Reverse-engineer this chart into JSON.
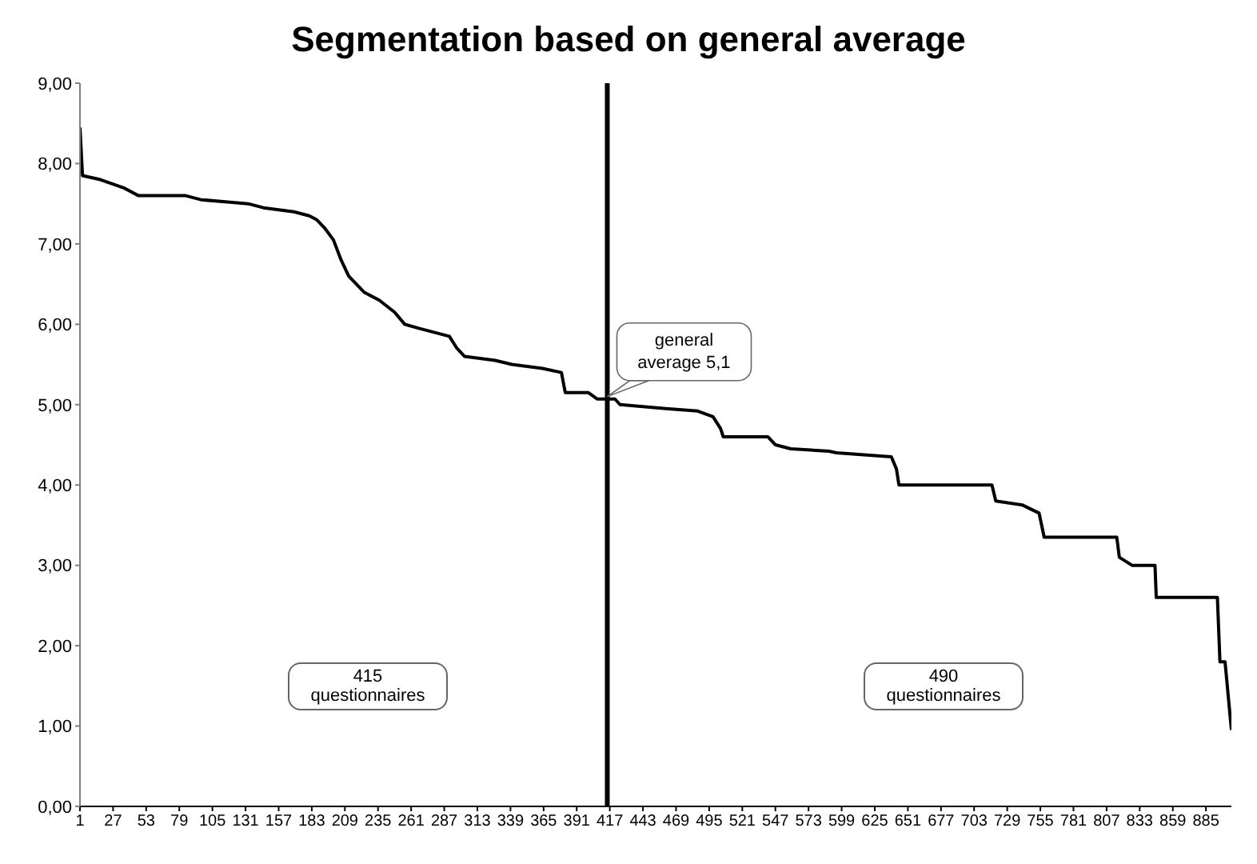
{
  "chart_data": {
    "type": "line",
    "title": "Segmentation based on general average",
    "xlim": [
      1,
      905
    ],
    "xticks": [
      1,
      27,
      53,
      79,
      105,
      131,
      157,
      183,
      209,
      235,
      261,
      287,
      313,
      339,
      365,
      391,
      417,
      443,
      469,
      495,
      521,
      547,
      573,
      599,
      625,
      651,
      677,
      703,
      729,
      755,
      781,
      807,
      833,
      859,
      885
    ],
    "ylim": [
      0,
      9
    ],
    "yticks": [
      {
        "value": 0,
        "label": "0,00"
      },
      {
        "value": 1,
        "label": "1,00"
      },
      {
        "value": 2,
        "label": "2,00"
      },
      {
        "value": 3,
        "label": "3,00"
      },
      {
        "value": 4,
        "label": "4,00"
      },
      {
        "value": 5,
        "label": "5,00"
      },
      {
        "value": 6,
        "label": "6,00"
      },
      {
        "value": 7,
        "label": "7,00"
      },
      {
        "value": 8,
        "label": "8,00"
      },
      {
        "value": 9,
        "label": "9,00"
      }
    ],
    "grid": false,
    "marker": "none",
    "line_style": "solid",
    "series": [
      {
        "color": "#000000",
        "x": [
          1,
          3,
          17,
          35,
          47,
          84,
          96,
          133,
          145,
          169,
          181,
          187,
          193,
          200,
          206,
          212,
          224,
          236,
          248,
          256,
          267,
          291,
          297,
          303,
          327,
          340,
          364,
          379,
          382,
          400,
          407,
          421,
          425,
          461,
          486,
          498,
          504,
          506,
          541,
          547,
          559,
          589,
          595,
          638,
          642,
          644,
          717,
          720,
          741,
          754,
          758,
          815,
          817,
          827,
          845,
          846,
          894,
          896,
          900,
          905
        ],
        "values": [
          8.45,
          7.85,
          7.8,
          7.7,
          7.6,
          7.6,
          7.55,
          7.5,
          7.45,
          7.4,
          7.35,
          7.3,
          7.2,
          7.05,
          6.8,
          6.6,
          6.4,
          6.3,
          6.15,
          6.0,
          5.95,
          5.85,
          5.7,
          5.6,
          5.55,
          5.5,
          5.45,
          5.4,
          5.15,
          5.15,
          5.07,
          5.07,
          5.0,
          4.95,
          4.92,
          4.85,
          4.7,
          4.6,
          4.6,
          4.5,
          4.45,
          4.42,
          4.4,
          4.35,
          4.2,
          4.0,
          4.0,
          3.8,
          3.75,
          3.65,
          3.35,
          3.35,
          3.1,
          3.0,
          3.0,
          2.6,
          2.6,
          1.8,
          1.8,
          0.95
        ]
      }
    ],
    "ref_lines": [
      {
        "axis": "x",
        "value": 415,
        "color": "#000000"
      }
    ],
    "annotations": [
      {
        "text": "general average 5,1",
        "x": 415,
        "y": 5.1
      },
      "415 questionnaires",
      "490 questionnaires"
    ]
  }
}
